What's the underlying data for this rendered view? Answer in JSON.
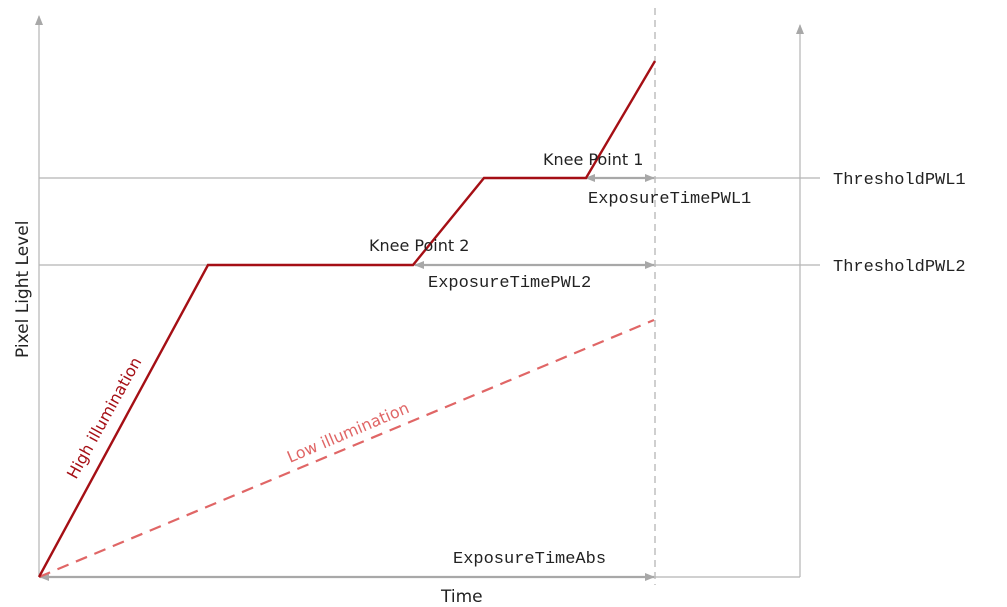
{
  "axes": {
    "y_label": "Pixel Light  Level",
    "x_label": "Time"
  },
  "curves": {
    "high": {
      "label": "High illumination",
      "color": "#a50f15"
    },
    "low": {
      "label": "Low illumination",
      "color": "#e06666"
    }
  },
  "knee_points": {
    "kp1": "Knee Point 1",
    "kp2": "Knee Point 2"
  },
  "thresholds": {
    "pwl1": "ThresholdPWL1",
    "pwl2": "ThresholdPWL2"
  },
  "exposure": {
    "pwl1": "ExposureTimePWL1",
    "pwl2": "ExposureTimePWL2",
    "abs": "ExposureTimeAbs"
  },
  "colors": {
    "axis": "#a8a8a8",
    "text": "#222222"
  }
}
